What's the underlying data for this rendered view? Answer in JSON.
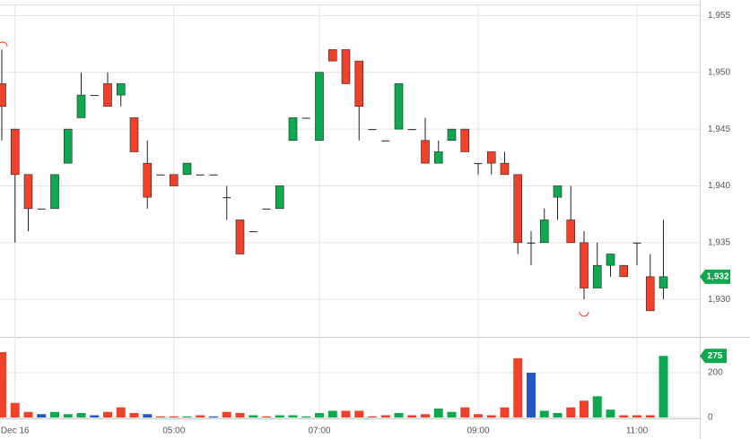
{
  "chart_data": [
    {
      "type": "candlestick",
      "categories": [
        null,
        "Dec 16",
        null,
        null,
        null,
        null,
        null,
        null,
        null,
        null,
        null,
        null,
        null,
        "05:00",
        null,
        null,
        null,
        null,
        null,
        null,
        null,
        null,
        null,
        null,
        "07:00",
        null,
        null,
        null,
        null,
        null,
        null,
        null,
        null,
        null,
        null,
        null,
        "09:00",
        null,
        null,
        null,
        null,
        null,
        null,
        null,
        null,
        null,
        null,
        null,
        "11:00",
        null,
        null
      ],
      "open": [
        1949,
        1945,
        1941,
        1938,
        1938,
        1942,
        1946,
        1948,
        1949,
        1948,
        1946,
        1942,
        1941,
        1941,
        1941,
        1941,
        1941,
        1939,
        1937,
        1936,
        1938,
        1938,
        1944,
        1946,
        1944,
        1952,
        1952,
        1951,
        1945,
        1944,
        1945,
        1945,
        1944,
        1942,
        1944,
        1945,
        1942,
        1943,
        1942,
        1941,
        1935,
        1935,
        1939,
        1937,
        1935,
        1931,
        1933,
        1933,
        1935,
        1932,
        1931
      ],
      "high": [
        1952,
        1945,
        1941,
        1938,
        1941,
        1945,
        1950,
        1948,
        1950,
        1949,
        1946,
        1944,
        1941,
        1941,
        1942,
        1941,
        1941,
        1940,
        1937,
        1936,
        1938,
        1940,
        1946,
        1946,
        1950,
        1952,
        1952,
        1951,
        1945,
        1944,
        1949,
        1945,
        1946,
        1944,
        1945,
        1945,
        1942,
        1943,
        1943,
        1941,
        1936,
        1938,
        1940,
        1940,
        1936,
        1935,
        1934,
        1933,
        1935,
        1934,
        1937
      ],
      "low": [
        1944,
        1935,
        1936,
        1938,
        1938,
        1942,
        1946,
        1948,
        1947,
        1947,
        1943,
        1938,
        1941,
        1940,
        1941,
        1941,
        1941,
        1937,
        1934,
        1936,
        1938,
        1938,
        1944,
        1946,
        1944,
        1951,
        1949,
        1944,
        1945,
        1944,
        1945,
        1945,
        1942,
        1942,
        1944,
        1943,
        1941,
        1941,
        1941,
        1934,
        1933,
        1935,
        1937,
        1935,
        1930,
        1931,
        1932,
        1932,
        1933,
        1929,
        1930
      ],
      "close": [
        1947,
        1941,
        1938,
        1938,
        1941,
        1945,
        1948,
        1948,
        1947,
        1949,
        1943,
        1939,
        1941,
        1940,
        1942,
        1941,
        1941,
        1939,
        1934,
        1936,
        1938,
        1940,
        1946,
        1946,
        1950,
        1951,
        1949,
        1947,
        1945,
        1944,
        1949,
        1945,
        1942,
        1943,
        1945,
        1943,
        1942,
        1942,
        1941,
        1935,
        1935,
        1937,
        1940,
        1935,
        1931,
        1933,
        1934,
        1932,
        1935,
        1929,
        1932
      ],
      "up_color": "#0ea84f",
      "down_color": "#f0422a",
      "ylim": [
        1926.7,
        1955.9
      ],
      "yticks": [
        {
          "value": 1930,
          "label": "1,930"
        },
        {
          "value": 1935,
          "label": "1,935"
        },
        {
          "value": 1940,
          "label": "1,940"
        },
        {
          "value": 1945,
          "label": "1,945"
        },
        {
          "value": 1950,
          "label": "1,950"
        },
        {
          "value": 1955,
          "label": "1,955"
        }
      ],
      "grid": true,
      "last_value": {
        "value": 1932,
        "label": "1,932"
      }
    },
    {
      "type": "bar",
      "values": [
        292,
        65,
        25,
        15,
        25,
        15,
        20,
        10,
        25,
        45,
        20,
        15,
        5,
        5,
        5,
        10,
        5,
        25,
        20,
        10,
        5,
        10,
        10,
        5,
        20,
        30,
        30,
        30,
        5,
        10,
        20,
        10,
        15,
        40,
        25,
        45,
        15,
        10,
        45,
        265,
        200,
        30,
        20,
        45,
        75,
        95,
        35,
        10,
        10,
        10,
        275
      ],
      "colors": [
        "#f0422a",
        "#f0422a",
        "#f0422a",
        "#2456c4",
        "#0ea84f",
        "#0ea84f",
        "#0ea84f",
        "#2456c4",
        "#f0422a",
        "#f0422a",
        "#f0422a",
        "#2456c4",
        "#f0422a",
        "#f0422a",
        "#0ea84f",
        "#f0422a",
        "#2456c4",
        "#f0422a",
        "#f0422a",
        "#0ea84f",
        "#f0422a",
        "#0ea84f",
        "#0ea84f",
        "#0ea84f",
        "#0ea84f",
        "#0ea84f",
        "#f0422a",
        "#f0422a",
        "#f0422a",
        "#f0422a",
        "#0ea84f",
        "#f0422a",
        "#f0422a",
        "#0ea84f",
        "#0ea84f",
        "#f0422a",
        "#f0422a",
        "#f0422a",
        "#f0422a",
        "#f0422a",
        "#2456c4",
        "#0ea84f",
        "#0ea84f",
        "#f0422a",
        "#f0422a",
        "#0ea84f",
        "#0ea84f",
        "#f0422a",
        "#f0422a",
        "#f0422a",
        "#0ea84f"
      ],
      "ylim": [
        0,
        344
      ],
      "yticks": [
        0,
        200
      ],
      "last_value": 275
    }
  ]
}
